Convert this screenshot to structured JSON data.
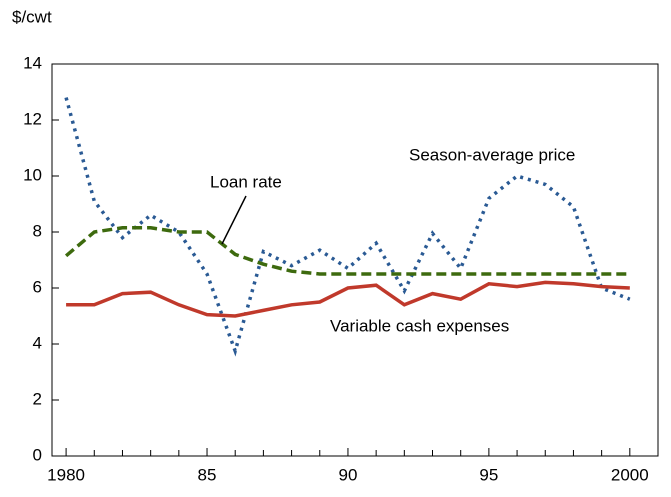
{
  "chart_data": {
    "type": "line",
    "y_label": "$/cwt",
    "x": [
      1980,
      1981,
      1982,
      1983,
      1984,
      1985,
      1986,
      1987,
      1988,
      1989,
      1990,
      1991,
      1992,
      1993,
      1994,
      1995,
      1996,
      1997,
      1998,
      1999,
      2000
    ],
    "series": [
      {
        "name": "Season-average price",
        "color": "#2a5a94",
        "style": "dotted",
        "values": [
          12.8,
          9.1,
          7.8,
          8.6,
          8.0,
          6.5,
          3.75,
          7.3,
          6.8,
          7.35,
          6.7,
          7.6,
          5.9,
          7.95,
          6.7,
          9.2,
          10.0,
          9.7,
          8.9,
          6.0,
          5.6
        ]
      },
      {
        "name": "Loan rate",
        "color": "#3d6a0e",
        "style": "dashed",
        "values": [
          7.15,
          8.0,
          8.15,
          8.15,
          8.0,
          8.0,
          7.2,
          6.85,
          6.6,
          6.5,
          6.5,
          6.5,
          6.5,
          6.5,
          6.5,
          6.5,
          6.5,
          6.5,
          6.5,
          6.5,
          6.5
        ]
      },
      {
        "name": "Variable cash expenses",
        "color": "#c0392b",
        "style": "solid",
        "values": [
          5.4,
          5.4,
          5.8,
          5.85,
          5.4,
          5.05,
          5.0,
          5.2,
          5.4,
          5.5,
          6.0,
          6.1,
          5.4,
          5.8,
          5.6,
          6.15,
          6.05,
          6.2,
          6.15,
          6.05,
          6.0
        ]
      }
    ],
    "xlim": [
      1979.5,
      2001
    ],
    "xticks": [
      {
        "value": 1980,
        "label": "1980"
      },
      {
        "value": 1985,
        "label": "85"
      },
      {
        "value": 1990,
        "label": "90"
      },
      {
        "value": 1995,
        "label": "95"
      },
      {
        "value": 2000,
        "label": "2000"
      }
    ],
    "xticks_minor": [
      1981,
      1982,
      1983,
      1984,
      1986,
      1987,
      1988,
      1989,
      1991,
      1992,
      1993,
      1994,
      1996,
      1997,
      1998,
      1999
    ],
    "ylim": [
      0,
      14
    ],
    "yticks": [
      0,
      2,
      4,
      6,
      8,
      10,
      12,
      14
    ]
  }
}
